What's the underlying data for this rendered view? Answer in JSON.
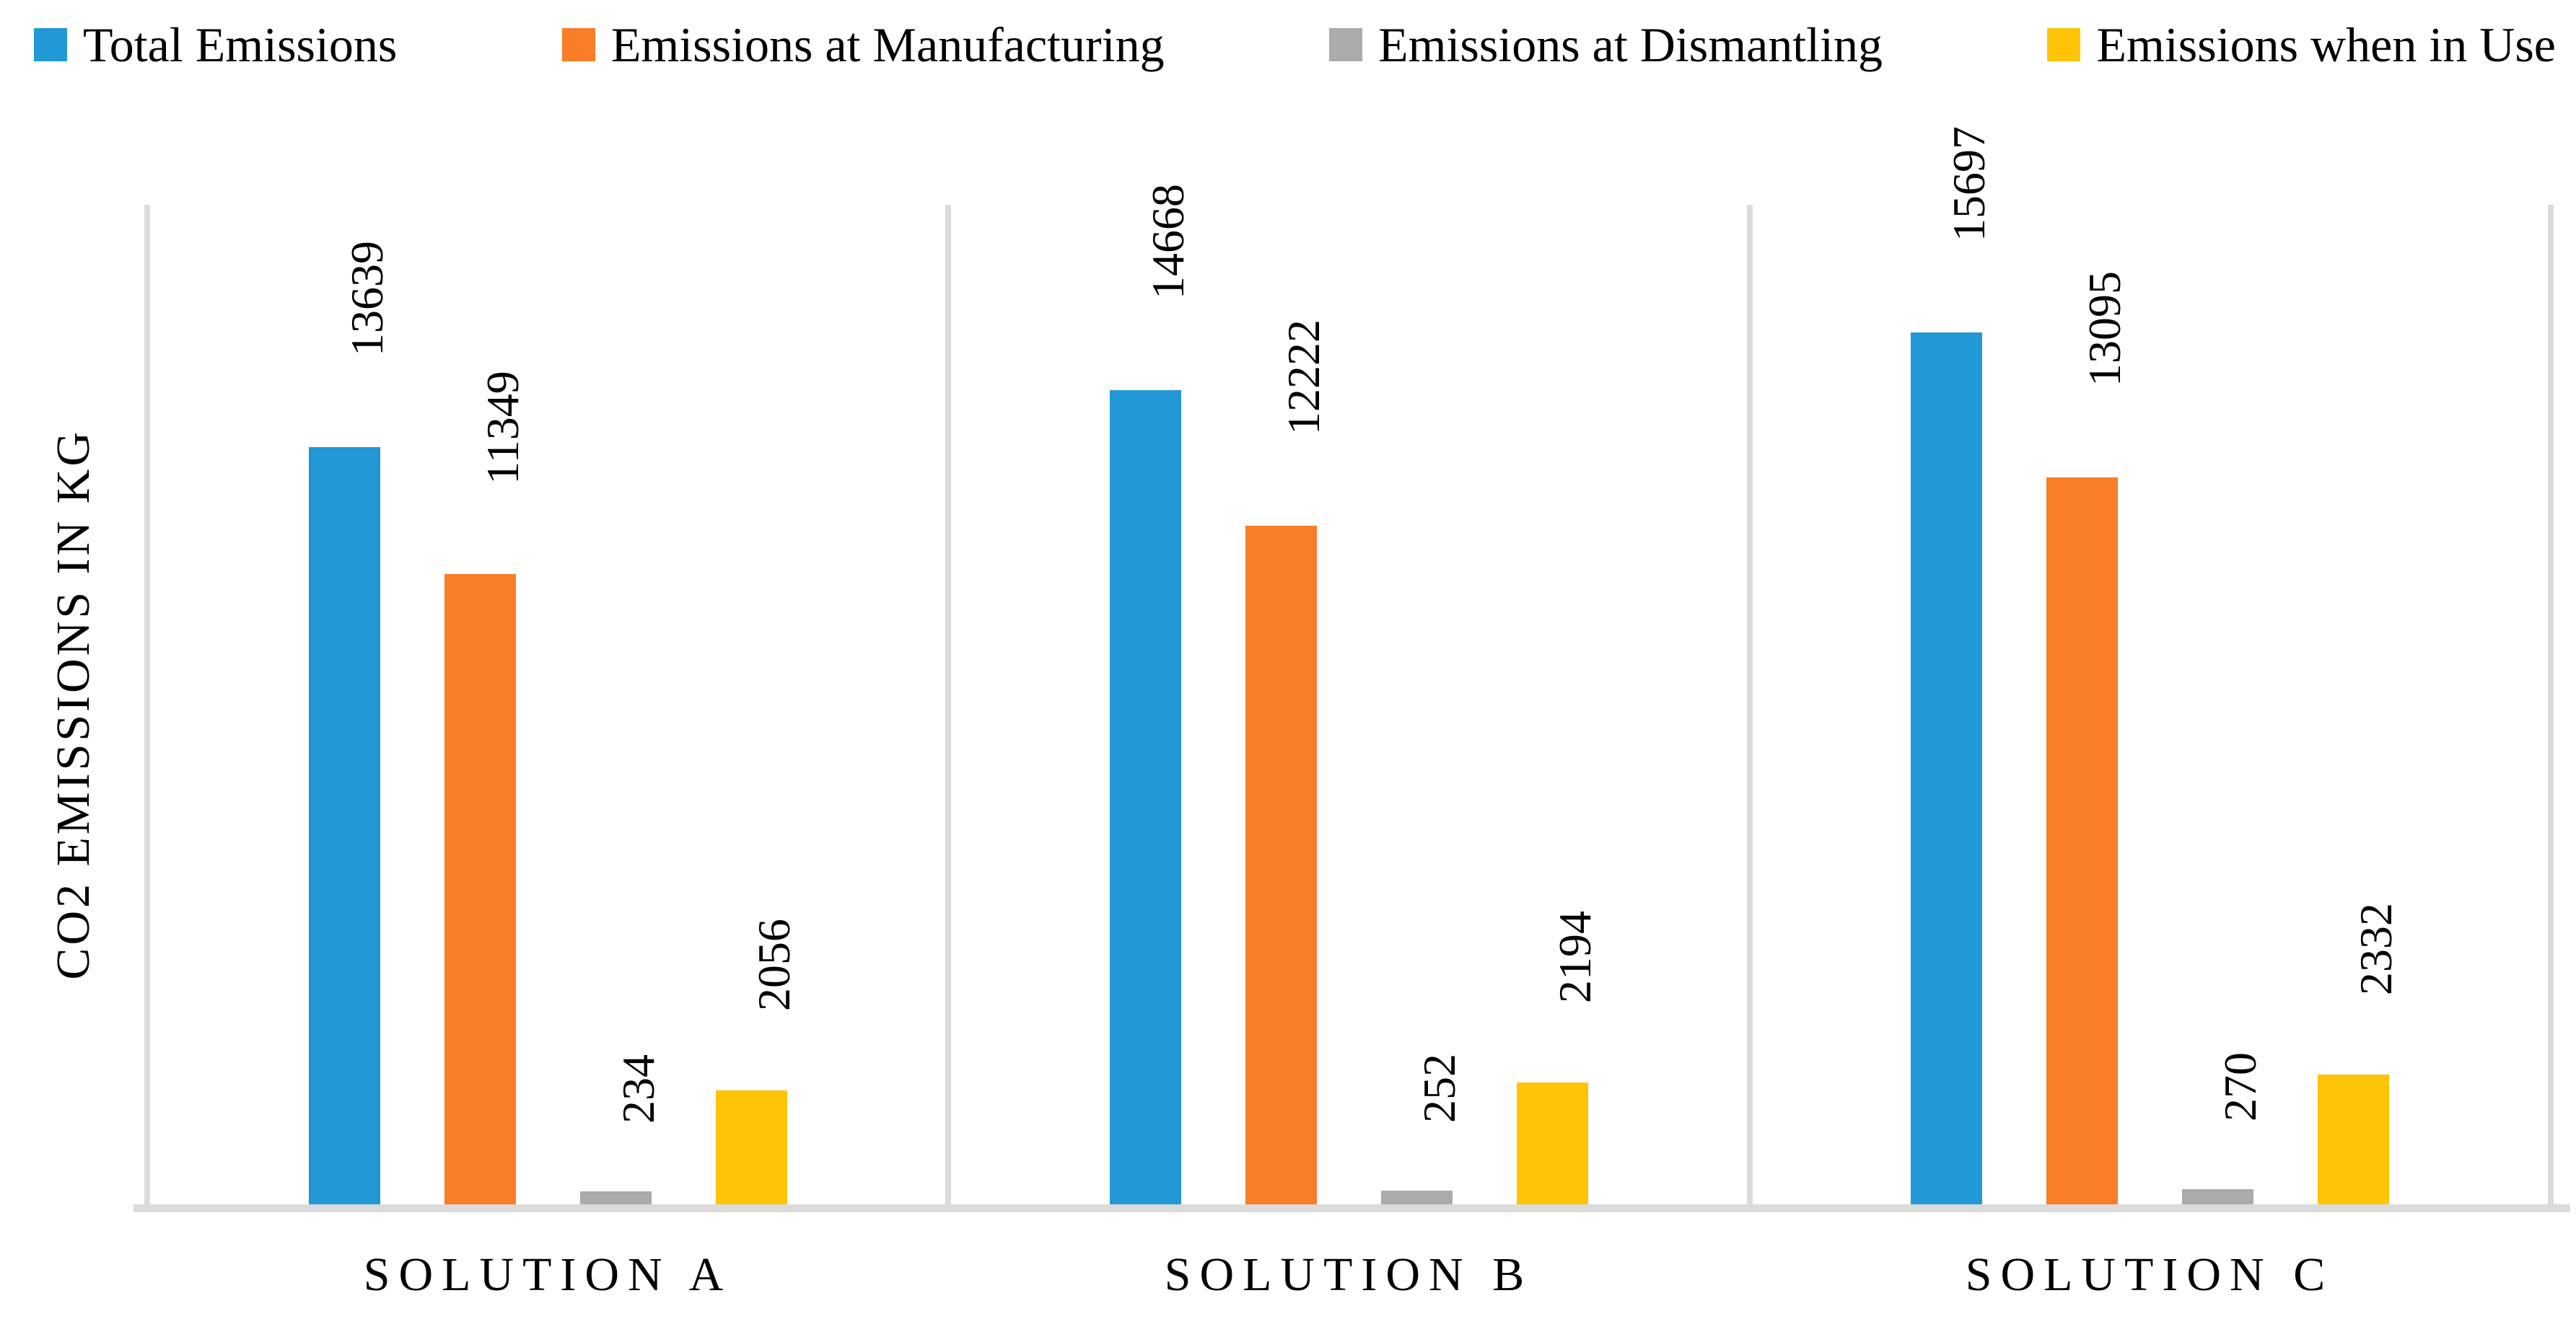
{
  "figure": {
    "background": "#FFFFFF",
    "text_color": "#000000",
    "axis_line_color": "#DBDBDB"
  },
  "legend": {
    "position": "top",
    "items": [
      {
        "label": "Total Emissions",
        "color": "#2298D6",
        "marker": "square"
      },
      {
        "label": "Emissions at Manufacturing",
        "color": "#FA7D28",
        "marker": "square"
      },
      {
        "label": "Emissions at Dismantling",
        "color": "#ABABAB",
        "marker": "square"
      },
      {
        "label": "Emissions when in Use",
        "color": "#FFC408",
        "marker": "square"
      }
    ]
  },
  "y_axis": {
    "title": "CO2 EMISSIONS IN KG",
    "min": 0,
    "max": 18000,
    "tick_labels_visible": false
  },
  "chart_data": {
    "type": "bar",
    "title": "",
    "xlabel": "",
    "ylabel": "CO2 EMISSIONS IN KG",
    "ylim": [
      0,
      18000
    ],
    "grid": false,
    "legend_position": "top",
    "data_labels": "rotated-90-above-bars",
    "categories": [
      "SOLUTION A",
      "SOLUTION B",
      "SOLUTION C"
    ],
    "series": [
      {
        "name": "Total Emissions",
        "color": "#2298D6",
        "values": [
          13639,
          14668,
          15697
        ]
      },
      {
        "name": "Emissions at Manufacturing",
        "color": "#FA7D28",
        "values": [
          11349,
          12222,
          13095
        ]
      },
      {
        "name": "Emissions at Dismantling",
        "color": "#ABABAB",
        "values": [
          234,
          252,
          270
        ]
      },
      {
        "name": "Emissions when in Use",
        "color": "#FFC408",
        "values": [
          2056,
          2194,
          2332
        ]
      }
    ]
  }
}
